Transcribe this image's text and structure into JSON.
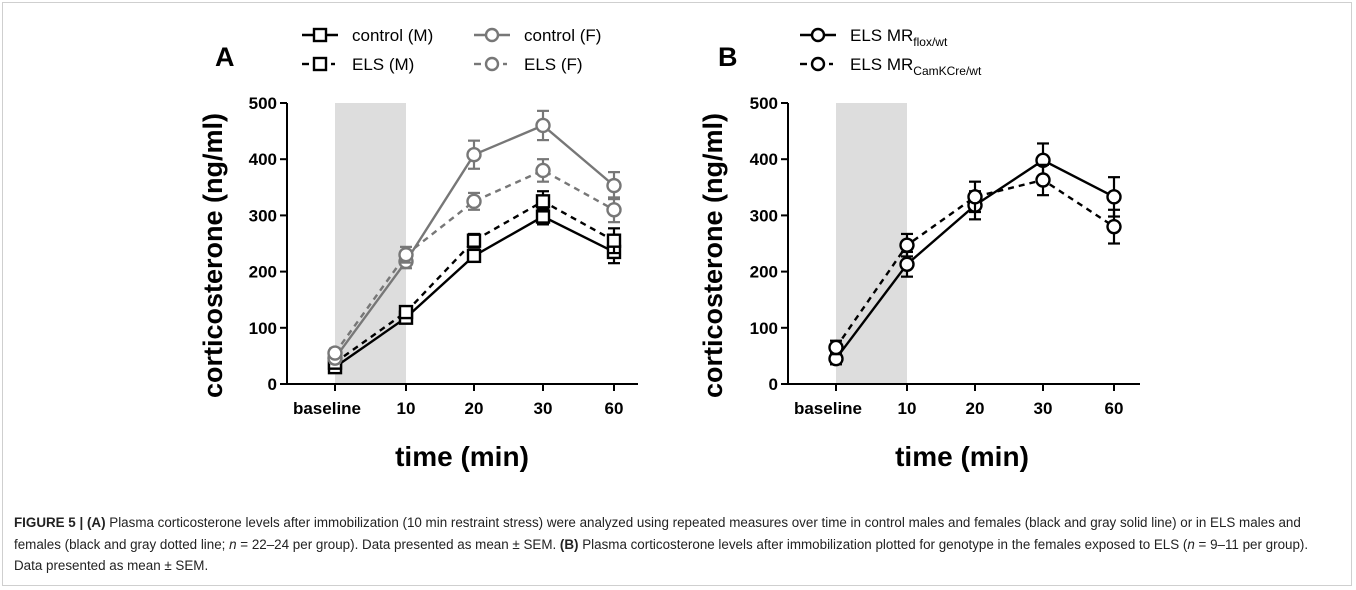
{
  "figure": {
    "caption_label": "FIGURE 5 | ",
    "caption": [
      {
        "text": "(A)",
        "style": "bold"
      },
      {
        "text": " Plasma corticosterone levels after immobilization (10 min restraint stress) were analyzed using repeated measures over time in control males and females (black and gray solid line) or in ELS males and females (black and gray dotted line; ",
        "style": "normal"
      },
      {
        "text": "n",
        "style": "italic"
      },
      {
        "text": " = 22–24 per group). Data presented as mean ± SEM. ",
        "style": "normal"
      },
      {
        "text": "(B)",
        "style": "bold"
      },
      {
        "text": " Plasma corticosterone levels after immobilization plotted for genotype in the females exposed to ELS (",
        "style": "normal"
      },
      {
        "text": "n",
        "style": "italic"
      },
      {
        "text": " = 9–11 per group). Data presented as mean ± SEM.",
        "style": "normal"
      }
    ]
  },
  "chart_data": [
    {
      "panel_label": "A",
      "type": "line",
      "categories": [
        "baseline",
        "10",
        "20",
        "30",
        "60"
      ],
      "xlabel": "time (min)",
      "ylabel": "corticosterone (ng/ml)",
      "ylim": [
        0,
        500
      ],
      "yticks": [
        "0",
        "100",
        "200",
        "300",
        "400",
        "500"
      ],
      "shaded_interval": [
        "baseline",
        "10"
      ],
      "shade_color": "#dddddd",
      "legend_placement": "top",
      "series": [
        {
          "name": "control (M)",
          "marker": "square",
          "line": "solid",
          "color": "#000000",
          "values": [
            30,
            118,
            228,
            298,
            235
          ],
          "sem": [
            6,
            8,
            10,
            14,
            20
          ]
        },
        {
          "name": "ELS (M)",
          "marker": "square",
          "line": "dashed",
          "color": "#000000",
          "values": [
            38,
            128,
            255,
            325,
            255
          ],
          "sem": [
            6,
            8,
            12,
            18,
            22
          ]
        },
        {
          "name": "control (F)",
          "marker": "circle",
          "line": "solid",
          "color": "#777777",
          "values": [
            46,
            218,
            408,
            460,
            353
          ],
          "sem": [
            8,
            12,
            25,
            26,
            24
          ]
        },
        {
          "name": "ELS (F)",
          "marker": "circle",
          "line": "dashed",
          "color": "#777777",
          "values": [
            55,
            230,
            325,
            380,
            310
          ],
          "sem": [
            8,
            14,
            15,
            20,
            22
          ]
        }
      ]
    },
    {
      "panel_label": "B",
      "type": "line",
      "categories": [
        "baseline",
        "10",
        "20",
        "30",
        "60"
      ],
      "xlabel": "time (min)",
      "ylabel": "corticosterone (ng/ml)",
      "ylim": [
        0,
        500
      ],
      "yticks": [
        "0",
        "100",
        "200",
        "300",
        "400",
        "500"
      ],
      "shaded_interval": [
        "baseline",
        "10"
      ],
      "shade_color": "#dddddd",
      "legend_placement": "top",
      "series": [
        {
          "name": "ELS MR",
          "subscript": "flox/wt",
          "marker": "circle",
          "line": "solid",
          "color": "#000000",
          "values": [
            45,
            213,
            318,
            398,
            333
          ],
          "sem": [
            10,
            22,
            25,
            30,
            35
          ]
        },
        {
          "name": "ELS MR",
          "subscript": "CamKCre/wt",
          "marker": "circle",
          "line": "dashed",
          "color": "#000000",
          "values": [
            65,
            247,
            333,
            363,
            280
          ],
          "sem": [
            12,
            20,
            27,
            27,
            30
          ]
        }
      ]
    }
  ]
}
